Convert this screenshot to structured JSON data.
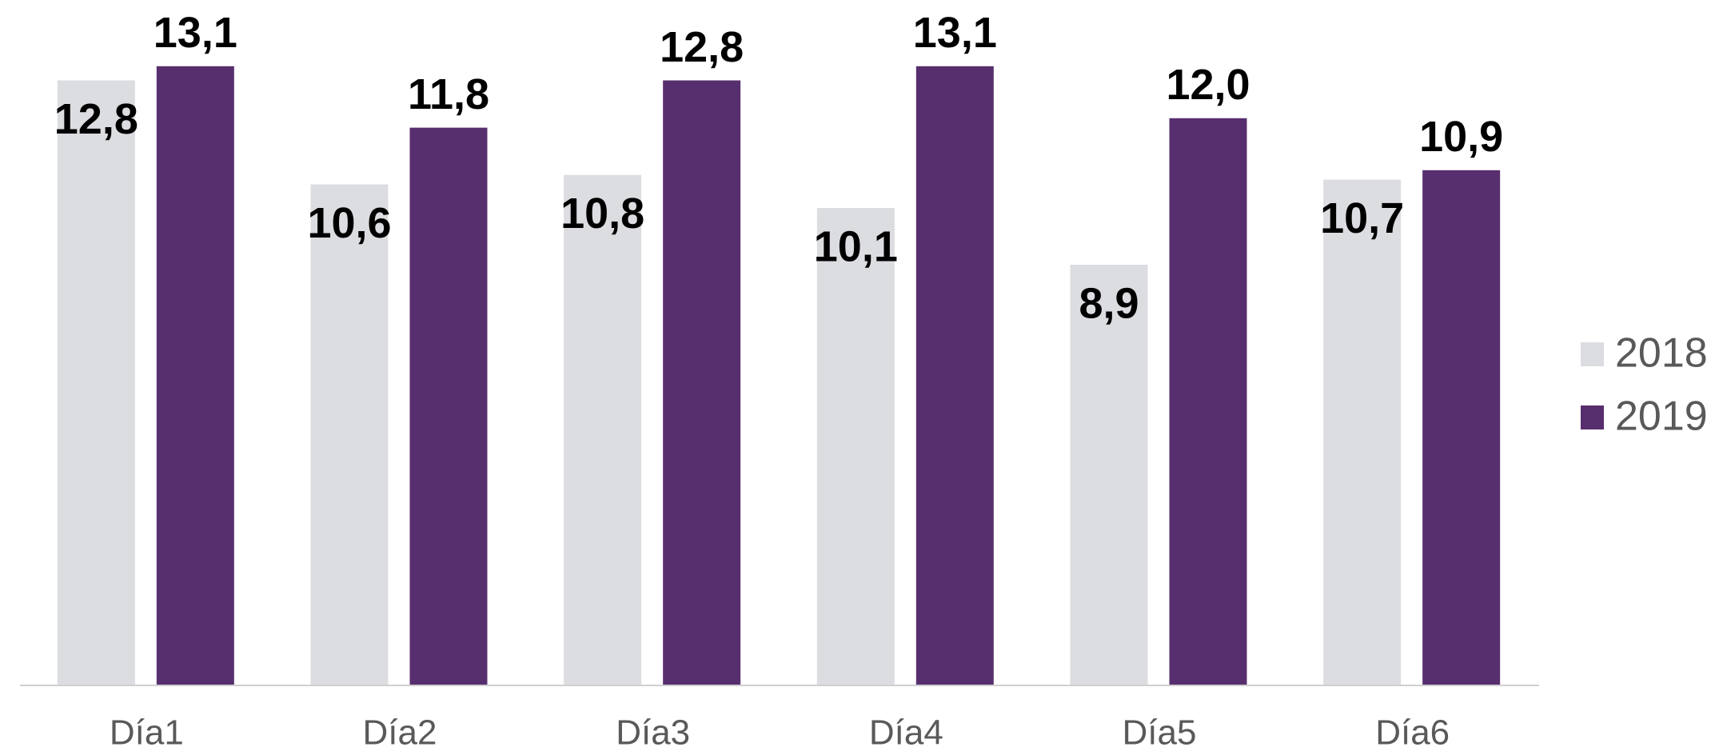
{
  "chart_data": {
    "type": "bar",
    "categories": [
      "Día1",
      "Día2",
      "Día3",
      "Día4",
      "Día5",
      "Día6"
    ],
    "series": [
      {
        "name": "2018",
        "color": "#dcdde1",
        "values": [
          12.8,
          10.6,
          10.8,
          10.1,
          8.9,
          10.7
        ],
        "value_labels": [
          "12,8",
          "10,6",
          "10,8",
          "10,1",
          "8,9",
          "10,7"
        ]
      },
      {
        "name": "2019",
        "color": "#582f6e",
        "values": [
          13.1,
          11.8,
          12.8,
          13.1,
          12.0,
          10.9
        ],
        "value_labels": [
          "13,1",
          "11,8",
          "12,8",
          "13,1",
          "12,0",
          "10,9"
        ]
      }
    ],
    "legend": "right"
  }
}
